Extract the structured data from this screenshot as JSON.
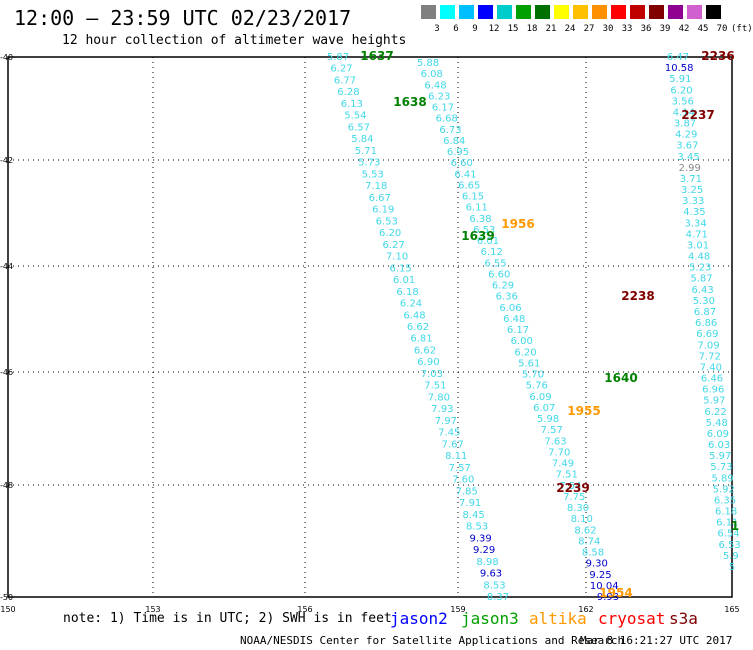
{
  "header": {
    "title": "12:00 — 23:59 UTC 02/23/2017",
    "subtitle": "12 hour collection of altimeter wave heights"
  },
  "color_scale": {
    "labels": [
      "3",
      "6",
      "9",
      "12",
      "15",
      "18",
      "21",
      "24",
      "27",
      "30",
      "33",
      "36",
      "39",
      "42",
      "45",
      "70",
      "(ft)"
    ],
    "colors": [
      "#808080",
      "#00ffff",
      "#00bfff",
      "#0000ff",
      "#00cccc",
      "#00a000",
      "#007000",
      "#ffff00",
      "#ffc000",
      "#ff9000",
      "#ff0000",
      "#c00000",
      "#800000",
      "#900090",
      "#d060d0",
      "#000000"
    ]
  },
  "axes": {
    "lat_labels": [
      "-40",
      "-42",
      "-44",
      "-46",
      "-48",
      "-50"
    ],
    "lon_labels": [
      "150",
      "153",
      "156",
      "159",
      "162",
      "165"
    ]
  },
  "tracks": {
    "a": [
      "5.87",
      "6.27",
      "6.77",
      "6.28",
      "6.13",
      "5.54",
      "6.57",
      "5.84",
      "5.71",
      "5.73",
      "5.53",
      "7.18",
      "6.67",
      "6.19",
      "6.53",
      "6.20",
      "6.27",
      "7.10",
      "6.15",
      "6.01",
      "6.18",
      "6.24",
      "6.48",
      "6.62",
      "6.81",
      "6.62",
      "6.90",
      "7.03",
      "7.51",
      "7.80",
      "7.93",
      "7.97",
      "7.45",
      "7.67",
      "8.11",
      "7.57",
      "7.60",
      "7.85",
      "7.91",
      "8.45",
      "8.53",
      "9.39",
      "9.29",
      "8.98",
      "9.63",
      "8.53",
      "8.37"
    ],
    "b": [
      "5.88",
      "6.08",
      "6.48",
      "6.23",
      "6.17",
      "6.68",
      "6.73",
      "6.84",
      "6.95",
      "6.60",
      "6.41",
      "6.65",
      "6.15",
      "6.11",
      "6.38",
      "6.53",
      "6.01",
      "6.12",
      "6.55",
      "6.60",
      "6.29",
      "6.36",
      "6.06",
      "6.48",
      "6.17",
      "6.00",
      "6.20",
      "5.61",
      "5.70",
      "5.76",
      "6.09",
      "6.07",
      "5.98",
      "7.57",
      "7.63",
      "7.70",
      "7.49",
      "7.51",
      "7.54",
      "7.75",
      "8.30",
      "8.10",
      "8.62",
      "8.74",
      "8.58",
      "9.30",
      "9.25",
      "10.04",
      "9.93"
    ],
    "c": [
      "6.47",
      "10.58",
      "5.91",
      "6.20",
      "3.56",
      "4.14",
      "3.87",
      "4.29",
      "3.67",
      "3.45",
      "2.99",
      "3.71",
      "3.25",
      "3.33",
      "4.35",
      "3.34",
      "4.71",
      "3.01",
      "4.48",
      "5.23",
      "5.87",
      "6.43",
      "5.30",
      "6.87",
      "6.86",
      "6.69",
      "7.09",
      "7.72",
      "7.40",
      "6.46",
      "6.96",
      "5.97",
      "6.22",
      "5.48",
      "6.09",
      "6.03",
      "5.97",
      "5.73",
      "5.89",
      "5.92",
      "6.35",
      "6.18",
      "6.11",
      "6.54",
      "6.53",
      "5.9",
      "5"
    ]
  },
  "pass_labels": [
    {
      "text": "1637",
      "color": "#008000"
    },
    {
      "text": "1638",
      "color": "#008000"
    },
    {
      "text": "1956",
      "color": "#ff9900"
    },
    {
      "text": "1639",
      "color": "#008000"
    },
    {
      "text": "2236",
      "color": "#800000"
    },
    {
      "text": "2237",
      "color": "#800000"
    },
    {
      "text": "2238",
      "color": "#800000"
    },
    {
      "text": "1640",
      "color": "#008000"
    },
    {
      "text": "1955",
      "color": "#ff9900"
    },
    {
      "text": "2239",
      "color": "#800000"
    },
    {
      "text": "1",
      "color": "#008000"
    },
    {
      "text": "1954",
      "color": "#ff9900"
    }
  ],
  "footer": {
    "note": "note: 1) Time is in UTC; 2) SWH is in feet",
    "satellites": [
      {
        "name": "jason2",
        "color": "#0000ff"
      },
      {
        "name": "jason3",
        "color": "#00a000"
      },
      {
        "name": "altika",
        "color": "#ff9900"
      },
      {
        "name": "cryosat",
        "color": "#ff0000"
      },
      {
        "name": "s3a",
        "color": "#800000"
      }
    ],
    "source": "NOAA/NESDIS Center for Satellite Applications and Research",
    "timestamp": "Mar  8 16:21:27 UTC 2017"
  }
}
